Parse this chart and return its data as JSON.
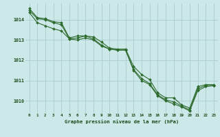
{
  "bg_color": "#cce8e8",
  "grid_color": "#aacccc",
  "line_color": "#2d6a2d",
  "marker_color": "#2d6a2d",
  "xlabel": "Graphe pression niveau de la mer (hPa)",
  "xlabel_color": "#1a4a1a",
  "tick_color": "#1a4a1a",
  "xlim": [
    -0.5,
    23.5
  ],
  "ylim": [
    1009.4,
    1014.8
  ],
  "yticks": [
    1010,
    1011,
    1012,
    1013,
    1014
  ],
  "xticks": [
    0,
    1,
    2,
    3,
    4,
    5,
    6,
    7,
    8,
    9,
    10,
    11,
    12,
    13,
    14,
    15,
    16,
    17,
    18,
    19,
    20,
    21,
    22,
    23
  ],
  "series1": {
    "x": [
      0,
      1,
      2,
      3,
      4,
      5,
      6,
      7,
      8,
      9,
      10,
      11,
      12,
      13,
      14,
      15,
      16,
      17,
      18,
      19,
      20,
      21,
      22,
      23
    ],
    "y": [
      1014.55,
      1014.1,
      1014.05,
      1013.9,
      1013.85,
      1013.1,
      1013.2,
      1013.2,
      1013.15,
      1012.9,
      1012.6,
      1012.55,
      1012.55,
      1011.7,
      1011.3,
      1011.05,
      1010.4,
      1010.15,
      1010.15,
      1009.8,
      1009.65,
      1010.7,
      1010.8,
      1010.8
    ]
  },
  "series2": {
    "x": [
      0,
      1,
      2,
      3,
      4,
      5,
      6,
      7,
      8,
      9,
      10,
      11,
      12,
      13,
      14,
      15,
      16,
      17,
      18,
      19,
      20,
      21,
      22,
      23
    ],
    "y": [
      1014.45,
      1014.05,
      1014.0,
      1013.85,
      1013.75,
      1013.05,
      1013.1,
      1013.2,
      1013.05,
      1012.75,
      1012.55,
      1012.5,
      1012.5,
      1011.55,
      1011.1,
      1010.85,
      1010.3,
      1010.05,
      1009.95,
      1009.75,
      1009.55,
      1010.6,
      1010.75,
      1010.75
    ]
  },
  "series3": {
    "x": [
      0,
      1,
      2,
      3,
      4,
      5,
      6,
      7,
      8,
      9,
      10,
      11,
      12,
      13,
      14,
      15,
      16,
      17,
      18,
      19,
      20,
      21,
      22,
      23
    ],
    "y": [
      1014.35,
      1013.85,
      1013.7,
      1013.55,
      1013.45,
      1013.05,
      1013.0,
      1013.1,
      1013.0,
      1012.7,
      1012.55,
      1012.5,
      1012.5,
      1011.5,
      1011.0,
      1010.8,
      1010.25,
      1010.0,
      1009.85,
      1009.7,
      1009.5,
      1010.5,
      1010.7,
      1010.75
    ]
  }
}
